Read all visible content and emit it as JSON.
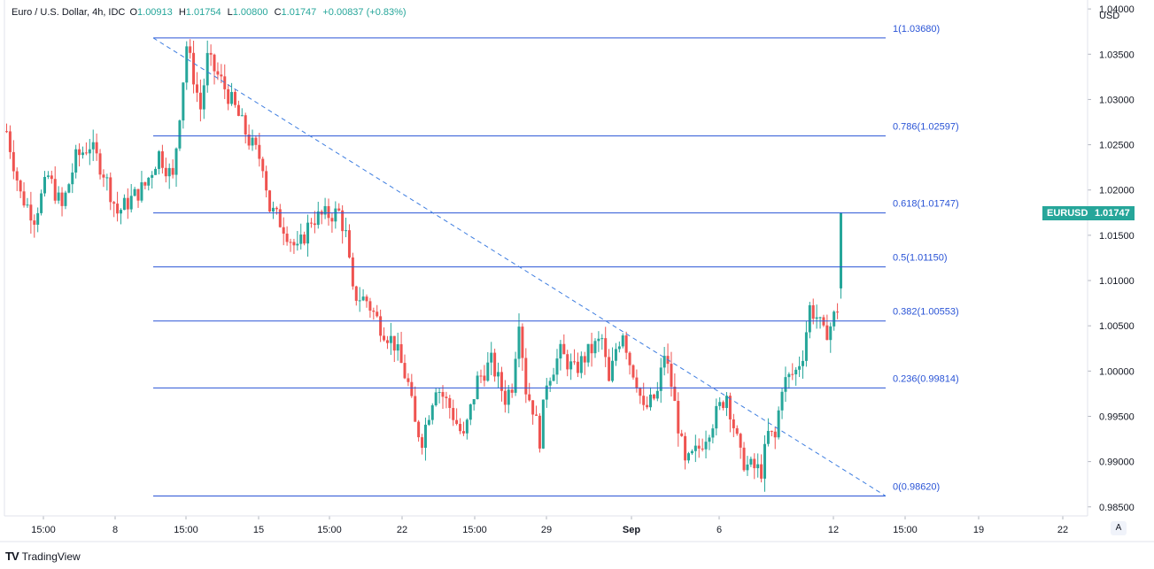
{
  "header": {
    "title": "Euro / U.S. Dollar, 4h, IDC",
    "open_label": "O",
    "open": "1.00913",
    "high_label": "H",
    "high": "1.01754",
    "low_label": "L",
    "low": "1.00800",
    "close_label": "C",
    "close": "1.01747",
    "change": "+0.00837 (+0.83%)"
  },
  "brand": {
    "name": "TradingView",
    "logo_text": "TV"
  },
  "auto_button": "A",
  "colors": {
    "up": "#26a69a",
    "down": "#ef5350",
    "fib": "#2a54d6",
    "trend": "#3d7de0"
  },
  "chart_data": {
    "type": "candlestick",
    "currency": "USD",
    "y_axis": {
      "ticks": [
        "1.04000",
        "1.03500",
        "1.03000",
        "1.02500",
        "1.02000",
        "1.01500",
        "1.01000",
        "1.00500",
        "1.00000",
        "0.99500",
        "0.99000",
        "0.98500"
      ],
      "range": [
        0.984,
        1.0405
      ]
    },
    "x_axis": {
      "ticks": [
        "15:00",
        "8",
        "15:00",
        "15",
        "15:00",
        "22",
        "15:00",
        "29",
        "Sep",
        "6",
        "12",
        "15:00",
        "19",
        "22"
      ]
    },
    "price_badge": {
      "symbol": "EURUSD",
      "price": "1.01747",
      "value": 1.01747
    },
    "fib_levels": [
      {
        "label": "1(1.03680)",
        "value": 1.0368
      },
      {
        "label": "0.786(1.02597)",
        "value": 1.02597
      },
      {
        "label": "0.618(1.01747)",
        "value": 1.01747
      },
      {
        "label": "0.5(1.01150)",
        "value": 1.0115
      },
      {
        "label": "0.382(1.00553)",
        "value": 1.00553
      },
      {
        "label": "0.236(0.99814)",
        "value": 0.99814
      },
      {
        "label": "0(0.98620)",
        "value": 0.9862
      }
    ],
    "trend_line": {
      "from": 1.0368,
      "to": 0.9862
    },
    "waypoints": [
      [
        0,
        1.0265
      ],
      [
        4,
        1.0195
      ],
      [
        8,
        1.017
      ],
      [
        12,
        1.0215
      ],
      [
        16,
        1.018
      ],
      [
        20,
        1.0235
      ],
      [
        24,
        1.025
      ],
      [
        28,
        1.022
      ],
      [
        32,
        1.0175
      ],
      [
        36,
        1.019
      ],
      [
        40,
        1.0205
      ],
      [
        44,
        1.024
      ],
      [
        48,
        1.0212
      ],
      [
        52,
        1.036
      ],
      [
        56,
        1.029
      ],
      [
        58,
        1.0345
      ],
      [
        62,
        1.032
      ],
      [
        66,
        1.029
      ],
      [
        70,
        1.0255
      ],
      [
        74,
        1.023
      ],
      [
        76,
        1.018
      ],
      [
        80,
        1.016
      ],
      [
        84,
        1.0132
      ],
      [
        88,
        1.0168
      ],
      [
        92,
        1.0172
      ],
      [
        96,
        1.0175
      ],
      [
        98,
        1.015
      ],
      [
        100,
        1.0085
      ],
      [
        104,
        1.0078
      ],
      [
        108,
        1.005
      ],
      [
        112,
        1.003
      ],
      [
        116,
        0.9985
      ],
      [
        118,
        0.994
      ],
      [
        120,
        0.9925
      ],
      [
        124,
        0.9985
      ],
      [
        128,
        0.996
      ],
      [
        132,
        0.9925
      ],
      [
        136,
        0.999
      ],
      [
        140,
        1.001
      ],
      [
        144,
        0.997
      ],
      [
        146,
        0.9985
      ],
      [
        148,
        1.006
      ],
      [
        150,
        0.998
      ],
      [
        152,
        0.996
      ],
      [
        154,
        0.9925
      ],
      [
        156,
        0.999
      ],
      [
        160,
        1.002
      ],
      [
        164,
        1.0
      ],
      [
        168,
        1.002
      ],
      [
        172,
        1.0035
      ],
      [
        174,
        0.9985
      ],
      [
        176,
        1.0025
      ],
      [
        178,
        1.0045
      ],
      [
        180,
        1.001
      ],
      [
        182,
        0.999
      ],
      [
        184,
        0.9955
      ],
      [
        188,
        0.9975
      ],
      [
        190,
        1.002
      ],
      [
        192,
        0.9985
      ],
      [
        196,
        0.9895
      ],
      [
        200,
        0.9915
      ],
      [
        204,
        0.9945
      ],
      [
        208,
        0.9975
      ],
      [
        212,
        0.9905
      ],
      [
        214,
        0.9895
      ],
      [
        218,
        0.989
      ],
      [
        220,
        0.993
      ],
      [
        222,
        0.9925
      ],
      [
        224,
        0.9985
      ],
      [
        228,
        1.0
      ],
      [
        230,
        1.002
      ],
      [
        232,
        1.007
      ],
      [
        234,
        1.006
      ],
      [
        236,
        1.004
      ],
      [
        238,
        1.005
      ],
      [
        240,
        1.007
      ]
    ]
  }
}
